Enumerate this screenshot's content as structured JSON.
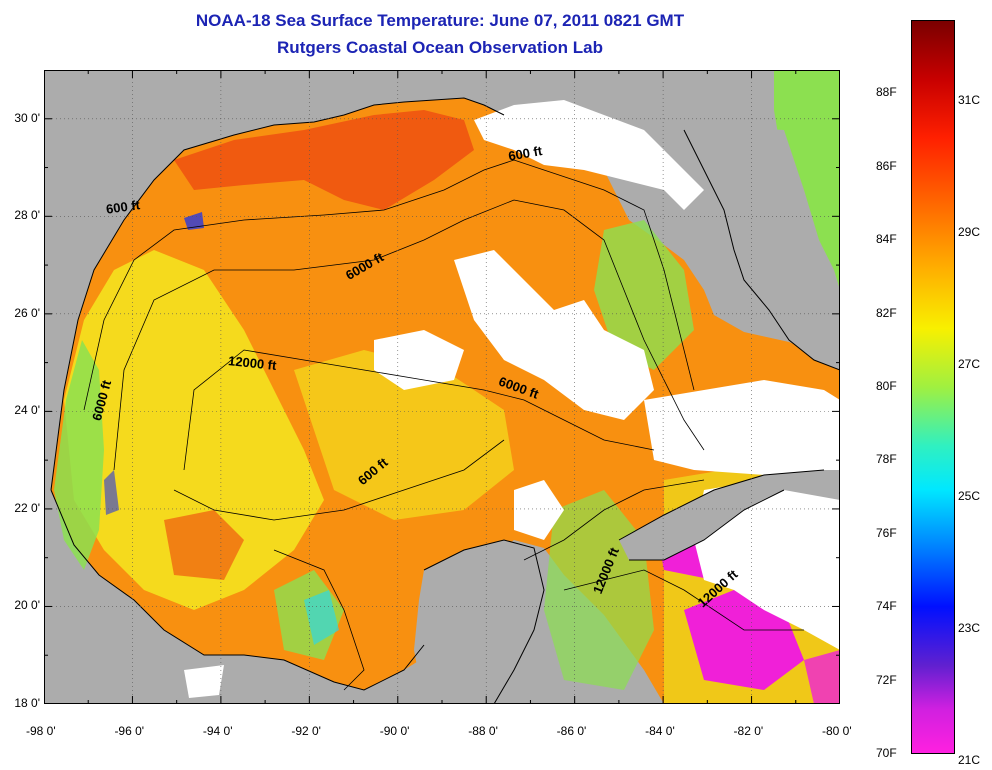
{
  "title": "NOAA-18 Sea Surface Temperature:  June 07, 2011 0821 GMT",
  "subtitle": "Rutgers Coastal Ocean Observation Lab",
  "map": {
    "region": "Gulf of Mexico",
    "lon_range": [
      -98,
      -80
    ],
    "lat_range": [
      18,
      31
    ],
    "colors": {
      "land": "#acacac",
      "cloud": "#ffffff",
      "warm": "#f89010",
      "hot": "#f05a10",
      "mid": "#f0c818",
      "yellow": "#f4ec20",
      "green": "#8ce050",
      "cyan": "#30d8e0",
      "blue": "#2838e0",
      "magenta": "#f020d8"
    },
    "x_ticks": [
      "-98 0'",
      "-96 0'",
      "-94 0'",
      "-92 0'",
      "-90 0'",
      "-88 0'",
      "-86 0'",
      "-84 0'",
      "-82 0'",
      "-80 0'"
    ],
    "y_ticks": [
      "30 0'",
      "28 0'",
      "26 0'",
      "24 0'",
      "22 0'",
      "20 0'",
      "18 0'"
    ],
    "contour_labels": [
      {
        "text": "600 ft",
        "lon": -96.2,
        "lat": 28.1,
        "angle": -8
      },
      {
        "text": "600 ft",
        "lon": -87.1,
        "lat": 29.2,
        "angle": -10
      },
      {
        "text": "6000 ft",
        "lon": -90.7,
        "lat": 26.9,
        "angle": -30
      },
      {
        "text": "12000 ft",
        "lon": -93.3,
        "lat": 24.9,
        "angle": 6
      },
      {
        "text": "6000 ft",
        "lon": -87.3,
        "lat": 24.4,
        "angle": 20
      },
      {
        "text": "6000 ft",
        "lon": -96.6,
        "lat": 24.2,
        "angle": -75
      },
      {
        "text": "600 ft",
        "lon": -90.5,
        "lat": 22.7,
        "angle": -40
      },
      {
        "text": "12000 ft",
        "lon": -85.2,
        "lat": 20.7,
        "angle": -68
      },
      {
        "text": "12000 ft",
        "lon": -82.7,
        "lat": 20.3,
        "angle": -42
      }
    ]
  },
  "colorbar": {
    "f_labels": [
      "88F",
      "86F",
      "84F",
      "82F",
      "80F",
      "78F",
      "76F",
      "74F",
      "72F",
      "70F"
    ],
    "c_labels": [
      "31C",
      "29C",
      "27C",
      "25C",
      "23C",
      "21C"
    ],
    "f_range": [
      70,
      90
    ],
    "c_values": [
      31,
      29,
      27,
      25,
      23,
      21
    ]
  }
}
